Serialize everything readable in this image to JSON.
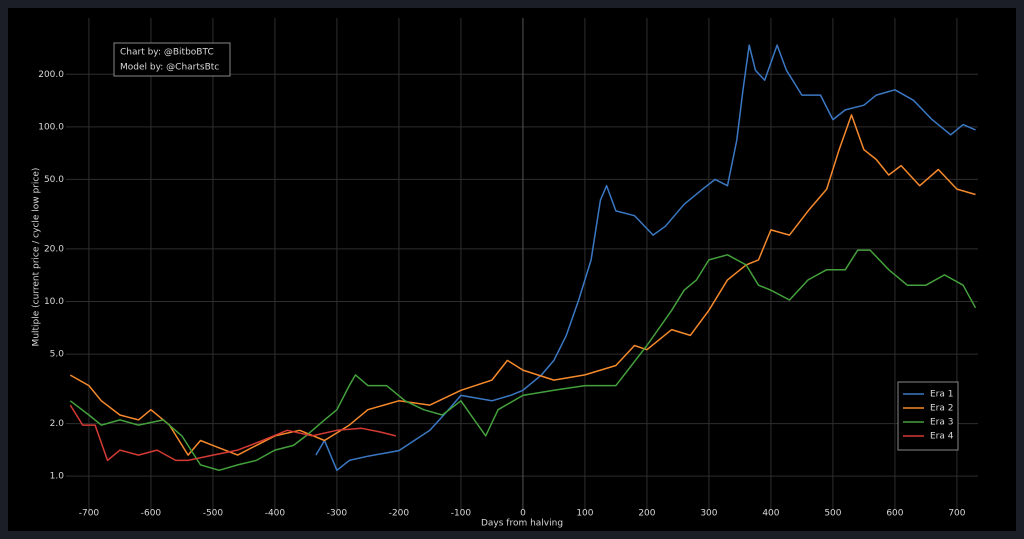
{
  "chart_data": {
    "type": "line",
    "annotations": [
      "Chart by: @BitboBTC",
      "Model by: @ChartsBtc"
    ],
    "x_label": "Days from halving",
    "y_label": "Multiple (current price / cycle low price)",
    "log_y": true,
    "grid": true,
    "legend": "lower right",
    "xlim": [
      -737,
      734
    ],
    "ylim": [
      0.64,
      420
    ],
    "xticks": [
      -700,
      -600,
      -500,
      -400,
      -300,
      -200,
      -100,
      0,
      100,
      200,
      300,
      400,
      500,
      600,
      700
    ],
    "yticks": [
      {
        "value": 1,
        "label": "1.0"
      },
      {
        "value": 2,
        "label": "2.0"
      },
      {
        "value": 5,
        "label": "5.0"
      },
      {
        "value": 10,
        "label": "10.0"
      },
      {
        "value": 20,
        "label": "20.0"
      },
      {
        "value": 50,
        "label": "50.0"
      },
      {
        "value": 100,
        "label": "100.0"
      },
      {
        "value": 200,
        "label": "200.0"
      }
    ],
    "series": [
      {
        "name": "Era 1",
        "color": "#3b78c3",
        "x": [
          -334,
          -320,
          -300,
          -280,
          -250,
          -200,
          -150,
          -120,
          -100,
          -50,
          -20,
          0,
          30,
          50,
          70,
          90,
          110,
          125,
          135,
          150,
          180,
          210,
          230,
          260,
          290,
          310,
          330,
          345,
          355,
          365,
          375,
          390,
          410,
          425,
          450,
          480,
          500,
          520,
          550,
          570,
          600,
          630,
          660,
          690,
          710,
          730
        ],
        "values": [
          1.32,
          1.6,
          1.08,
          1.23,
          1.3,
          1.4,
          1.83,
          2.4,
          2.9,
          2.7,
          2.9,
          3.1,
          3.8,
          4.6,
          6.4,
          10.2,
          17.3,
          38,
          46,
          33,
          31,
          24,
          27,
          36,
          44,
          50,
          46,
          84,
          163,
          294,
          211,
          185,
          294,
          211,
          152,
          152,
          110,
          125,
          133,
          152,
          163,
          142,
          110,
          90,
          103,
          96
        ]
      },
      {
        "name": "Era 2",
        "color": "#f5892c",
        "x": [
          -730,
          -700,
          -680,
          -650,
          -620,
          -600,
          -570,
          -540,
          -520,
          -500,
          -460,
          -430,
          -400,
          -360,
          -320,
          -280,
          -250,
          -200,
          -150,
          -100,
          -50,
          -25,
          0,
          50,
          100,
          150,
          180,
          200,
          240,
          270,
          300,
          330,
          360,
          380,
          400,
          430,
          460,
          490,
          510,
          530,
          550,
          570,
          590,
          610,
          640,
          670,
          700,
          730
        ],
        "values": [
          3.79,
          3.3,
          2.7,
          2.24,
          2.1,
          2.4,
          1.96,
          1.32,
          1.6,
          1.5,
          1.32,
          1.5,
          1.7,
          1.83,
          1.6,
          1.96,
          2.4,
          2.7,
          2.55,
          3.1,
          3.55,
          4.6,
          4.05,
          3.55,
          3.8,
          4.3,
          5.6,
          5.3,
          6.9,
          6.4,
          8.9,
          13.3,
          16.2,
          17.3,
          25.7,
          24,
          33,
          44,
          74,
          117,
          74,
          65,
          53,
          60,
          46,
          57,
          44,
          41
        ]
      },
      {
        "name": "Era 3",
        "color": "#44a03c",
        "x": [
          -730,
          -700,
          -680,
          -650,
          -620,
          -580,
          -550,
          -520,
          -490,
          -460,
          -430,
          -400,
          -370,
          -350,
          -320,
          -300,
          -280,
          -270,
          -250,
          -220,
          -190,
          -160,
          -130,
          -100,
          -60,
          -40,
          0,
          50,
          100,
          150,
          200,
          240,
          260,
          280,
          300,
          330,
          360,
          380,
          400,
          430,
          460,
          490,
          520,
          540,
          560,
          590,
          620,
          650,
          680,
          710,
          730
        ],
        "values": [
          2.7,
          2.24,
          1.96,
          2.1,
          1.96,
          2.1,
          1.7,
          1.16,
          1.08,
          1.16,
          1.23,
          1.41,
          1.5,
          1.7,
          2.1,
          2.4,
          3.3,
          3.8,
          3.3,
          3.3,
          2.7,
          2.4,
          2.24,
          2.7,
          1.7,
          2.4,
          2.9,
          3.1,
          3.3,
          3.3,
          5.6,
          8.9,
          11.6,
          13.3,
          17.3,
          18.5,
          16.2,
          12.4,
          11.6,
          10.2,
          13.3,
          15.2,
          15.2,
          19.7,
          19.7,
          15.2,
          12.4,
          12.4,
          14.2,
          12.4,
          9.2
        ]
      },
      {
        "name": "Era 4",
        "color": "#d43b34",
        "x": [
          -730,
          -710,
          -690,
          -670,
          -650,
          -620,
          -590,
          -560,
          -540,
          -500,
          -460,
          -420,
          -380,
          -340,
          -300,
          -260,
          -230,
          -205
        ],
        "values": [
          2.55,
          1.96,
          1.96,
          1.23,
          1.41,
          1.32,
          1.41,
          1.23,
          1.23,
          1.32,
          1.41,
          1.6,
          1.83,
          1.7,
          1.83,
          1.88,
          1.79,
          1.7
        ]
      }
    ]
  }
}
